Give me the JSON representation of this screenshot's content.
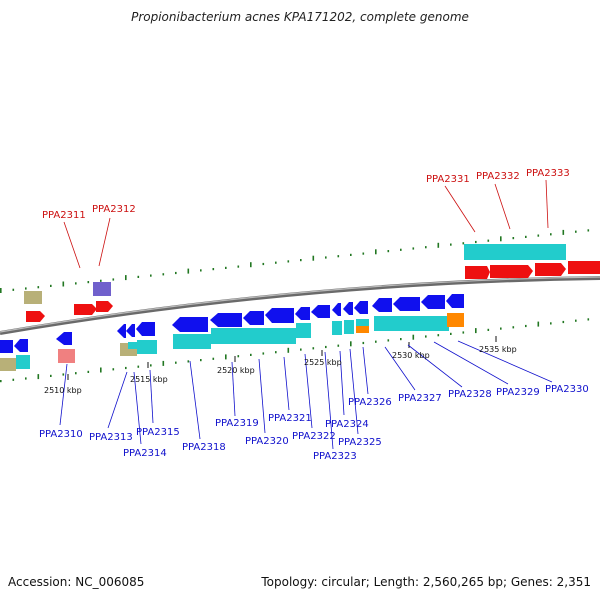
{
  "title": "Propionibacterium acnes KPA171202, complete genome",
  "footer": {
    "accession": "Accession: NC_006085",
    "topology": "Topology: circular; Length: 2,560,265 bp; Genes: 2,351"
  },
  "scale_ticks": [
    "2510 kbp",
    "2515 kbp",
    "2520 kbp",
    "2525 kbp",
    "2530 kbp",
    "2535 kbp"
  ],
  "gene_labels_minus": [
    "PPA2310",
    "PPA2313",
    "PPA2314",
    "PPA2315",
    "PPA2318",
    "PPA2319",
    "PPA2320",
    "PPA2321",
    "PPA2322",
    "PPA2323",
    "PPA2324",
    "PPA2325",
    "PPA2326",
    "PPA2327",
    "PPA2328",
    "PPA2329",
    "PPA2330"
  ],
  "gene_labels_plus": [
    "PPA2311",
    "PPA2312",
    "PPA2331",
    "PPA2332",
    "PPA2333"
  ],
  "colors": {
    "minus_strand_gene": "#1010ee",
    "plus_strand_gene": "#ee1010",
    "cds_cyan": "#22cccc",
    "backbone": "#888888",
    "gc_marks": "#227722",
    "other_orange": "#ff8800",
    "other_khaki": "#b8b078",
    "other_purple": "#7060cc",
    "other_pink": "#f08080"
  }
}
